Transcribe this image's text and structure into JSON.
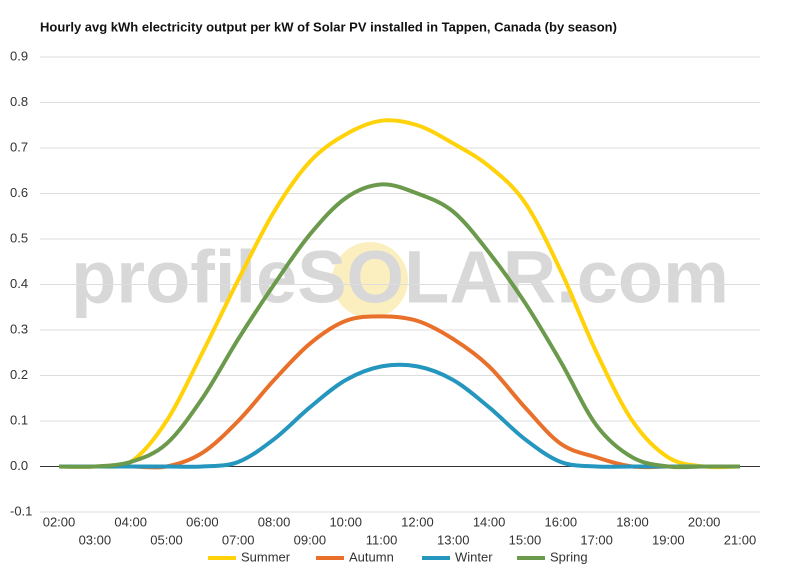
{
  "chart_data": {
    "type": "line",
    "title": "Hourly avg kWh electricity output per kW of Solar PV installed in Tappen, Canada (by season)",
    "watermark": "profileSOLAR.com",
    "categories": [
      "02:00",
      "03:00",
      "04:00",
      "05:00",
      "06:00",
      "07:00",
      "08:00",
      "09:00",
      "10:00",
      "11:00",
      "12:00",
      "13:00",
      "14:00",
      "15:00",
      "16:00",
      "17:00",
      "18:00",
      "19:00",
      "20:00",
      "21:00"
    ],
    "series": [
      {
        "name": "Summer",
        "color": "#ffd20a",
        "values": [
          0,
          0,
          0.01,
          0.1,
          0.25,
          0.41,
          0.56,
          0.67,
          0.73,
          0.76,
          0.75,
          0.71,
          0.66,
          0.58,
          0.43,
          0.25,
          0.1,
          0.02,
          0,
          0
        ]
      },
      {
        "name": "Autumn",
        "color": "#e8702a",
        "values": [
          0,
          0,
          0,
          0,
          0.03,
          0.1,
          0.19,
          0.27,
          0.32,
          0.33,
          0.32,
          0.28,
          0.22,
          0.13,
          0.05,
          0.02,
          0,
          0,
          0,
          0
        ]
      },
      {
        "name": "Winter",
        "color": "#2596be",
        "values": [
          0,
          0,
          0,
          0,
          0,
          0.01,
          0.06,
          0.13,
          0.19,
          0.22,
          0.22,
          0.19,
          0.13,
          0.06,
          0.01,
          0,
          0,
          0,
          0,
          0
        ]
      },
      {
        "name": "Spring",
        "color": "#6b9a4c",
        "values": [
          0,
          0,
          0.01,
          0.05,
          0.15,
          0.28,
          0.4,
          0.51,
          0.59,
          0.62,
          0.6,
          0.56,
          0.47,
          0.36,
          0.23,
          0.09,
          0.02,
          0,
          0,
          0
        ]
      }
    ],
    "ylim": [
      -0.1,
      0.9
    ],
    "yticks": [
      -0.1,
      {
        "value": 0,
        "label": "0.0"
      },
      0.1,
      0.2,
      0.3,
      0.4,
      0.5,
      0.6,
      0.7,
      0.8,
      0.9
    ],
    "grid": true
  }
}
